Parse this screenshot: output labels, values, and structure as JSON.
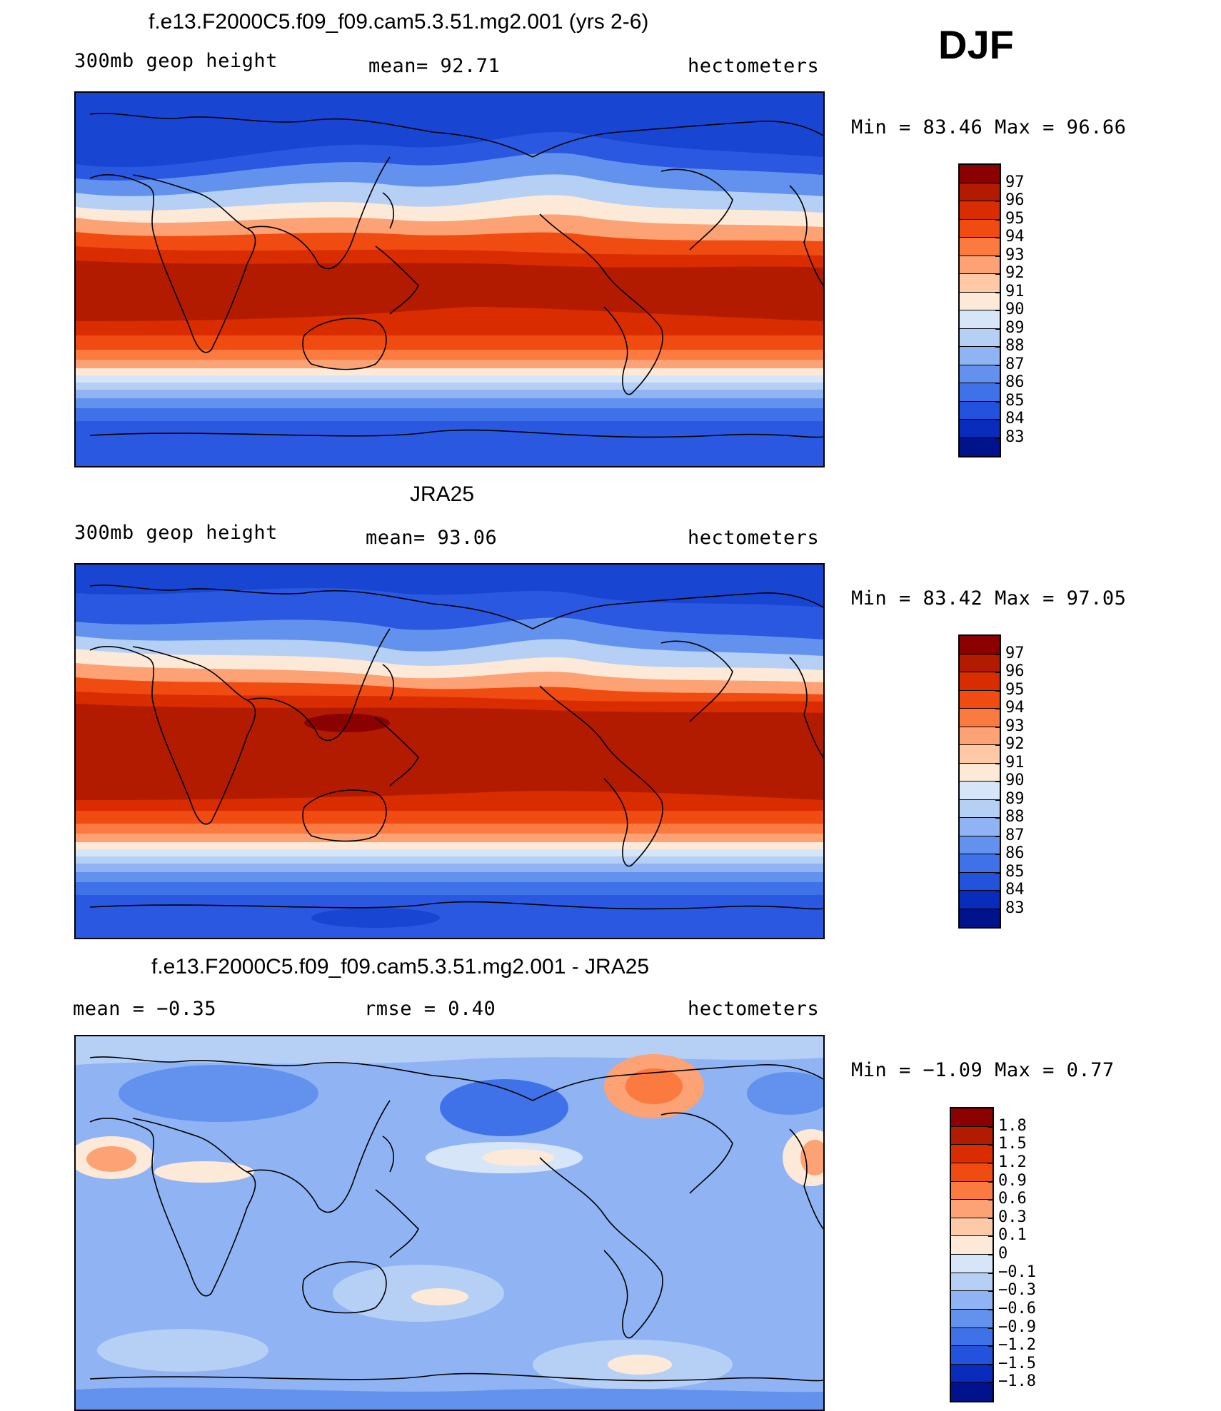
{
  "season": "DJF",
  "panels": [
    {
      "title": "f.e13.F2000C5.f09_f09.cam5.3.51.mg2.001 (yrs 2-6)",
      "left_label": "300mb  geop  height",
      "center_label": "mean=   92.71",
      "right_label": "hectometers",
      "minmax": "Min  =   83.46  Max  =   96.66",
      "legend_levels": [
        "97",
        "96",
        "95",
        "94",
        "93",
        "92",
        "91",
        "90",
        "89",
        "88",
        "87",
        "86",
        "85",
        "84",
        "83"
      ],
      "legend_colors": [
        "#8b0000",
        "#b31b00",
        "#d92c00",
        "#f04c12",
        "#fa7a40",
        "#fca274",
        "#fdc9a7",
        "#fde9d8",
        "#d6e6f8",
        "#b5cff5",
        "#8fb3f3",
        "#6392ee",
        "#3f72e8",
        "#2352dc",
        "#0a2cbc",
        "#00138c"
      ]
    },
    {
      "title": "JRA25",
      "left_label": "300mb  geop  height",
      "center_label": "mean=   93.06",
      "right_label": "hectometers",
      "minmax": "Min  =   83.42  Max  =   97.05",
      "legend_levels": [
        "97",
        "96",
        "95",
        "94",
        "93",
        "92",
        "91",
        "90",
        "89",
        "88",
        "87",
        "86",
        "85",
        "84",
        "83"
      ],
      "legend_colors": [
        "#8b0000",
        "#b31b00",
        "#d92c00",
        "#f04c12",
        "#fa7a40",
        "#fca274",
        "#fdc9a7",
        "#fde9d8",
        "#d6e6f8",
        "#b5cff5",
        "#8fb3f3",
        "#6392ee",
        "#3f72e8",
        "#2352dc",
        "#0a2cbc",
        "#00138c"
      ]
    },
    {
      "title": "f.e13.F2000C5.f09_f09.cam5.3.51.mg2.001 - JRA25",
      "left_label": "mean  =   −0.35",
      "center_label": "rmse  =    0.40",
      "right_label": "hectometers",
      "minmax": "Min  =   −1.09  Max  =    0.77",
      "legend_levels": [
        "1.8",
        "1.5",
        "1.2",
        "0.9",
        "0.6",
        "0.3",
        "0.1",
        "0",
        "−0.1",
        "−0.3",
        "−0.6",
        "−0.9",
        "−1.2",
        "−1.5",
        "−1.8"
      ],
      "legend_colors": [
        "#8b0000",
        "#b31b00",
        "#d92c00",
        "#f04c12",
        "#fa7a40",
        "#fca274",
        "#fdc9a7",
        "#fde9d8",
        "#d6e6f8",
        "#b5cff5",
        "#8fb3f3",
        "#6392ee",
        "#3f72e8",
        "#2352dc",
        "#0a2cbc",
        "#00138c"
      ]
    }
  ]
}
